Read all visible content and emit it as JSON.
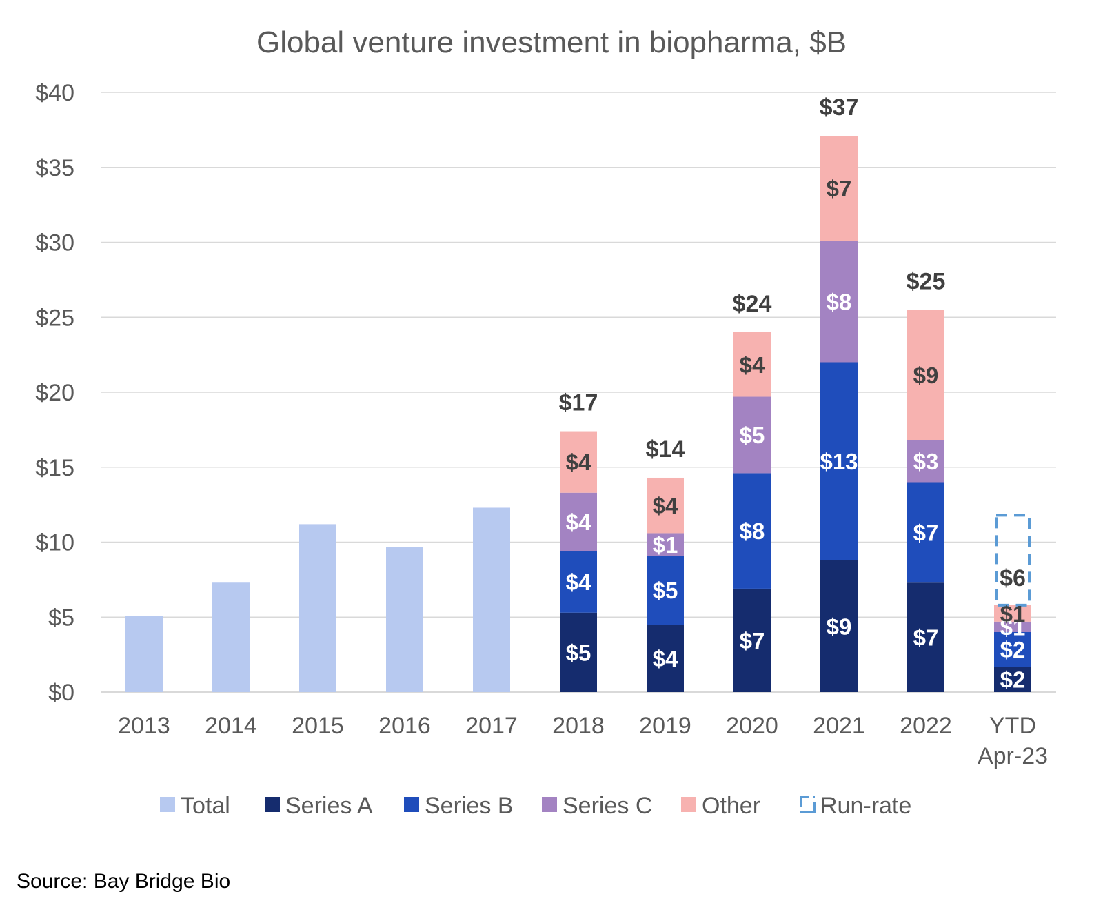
{
  "colors": {
    "total": "#B7C9F0",
    "series_a": "#152C6E",
    "series_b": "#1F4DBB",
    "series_c": "#A383C2",
    "other": "#F7B2B0",
    "run_rate": "#5B9BD5",
    "grid": "#D9D9D9",
    "axis_text": "#595959",
    "total_label": "#404040"
  },
  "source": "Source: Bay Bridge Bio",
  "chart_data": {
    "type": "bar",
    "stacked": true,
    "title": "Global venture investment in biopharma, $B",
    "xlabel": "",
    "ylabel": "",
    "ylim": [
      0,
      40
    ],
    "yticks": [
      0,
      5,
      10,
      15,
      20,
      25,
      30,
      35,
      40
    ],
    "ytick_labels": [
      "$0",
      "$5",
      "$10",
      "$15",
      "$20",
      "$25",
      "$30",
      "$35",
      "$40"
    ],
    "grid": true,
    "legend_position": "bottom",
    "categories": [
      [
        "2013"
      ],
      [
        "2014"
      ],
      [
        "2015"
      ],
      [
        "2016"
      ],
      [
        "2017"
      ],
      [
        "2018"
      ],
      [
        "2019"
      ],
      [
        "2020"
      ],
      [
        "2021"
      ],
      [
        "2022"
      ],
      [
        "YTD",
        "Apr-23"
      ]
    ],
    "series": [
      {
        "name": "Total",
        "key": "total",
        "values": [
          5.1,
          7.3,
          11.2,
          9.7,
          12.3,
          null,
          null,
          null,
          null,
          null,
          null
        ]
      },
      {
        "name": "Series A",
        "key": "series_a",
        "values": [
          null,
          null,
          null,
          null,
          null,
          5.3,
          4.5,
          6.9,
          8.8,
          7.3,
          1.7
        ],
        "labels": [
          "",
          "",
          "",
          "",
          "",
          "$5",
          "$4",
          "$7",
          "$9",
          "$7",
          "$2"
        ],
        "label_color": "#FFFFFF"
      },
      {
        "name": "Series B",
        "key": "series_b",
        "values": [
          null,
          null,
          null,
          null,
          null,
          4.1,
          4.6,
          7.7,
          13.2,
          6.7,
          2.3
        ],
        "labels": [
          "",
          "",
          "",
          "",
          "",
          "$4",
          "$5",
          "$8",
          "$13",
          "$7",
          "$2"
        ],
        "label_color": "#FFFFFF"
      },
      {
        "name": "Series C",
        "key": "series_c",
        "values": [
          null,
          null,
          null,
          null,
          null,
          3.9,
          1.5,
          5.1,
          8.1,
          2.8,
          0.7
        ],
        "labels": [
          "",
          "",
          "",
          "",
          "",
          "$4",
          "$1",
          "$5",
          "$8",
          "$3",
          "$1"
        ],
        "label_color": "#FFFFFF"
      },
      {
        "name": "Other",
        "key": "other",
        "values": [
          null,
          null,
          null,
          null,
          null,
          4.1,
          3.7,
          4.3,
          7.0,
          8.7,
          1.1
        ],
        "labels": [
          "",
          "",
          "",
          "",
          "",
          "$4",
          "$4",
          "$4",
          "$7",
          "$9",
          "$1"
        ],
        "label_color": "#404040"
      }
    ],
    "totals": {
      "indices": [
        5,
        6,
        7,
        8,
        9,
        10
      ],
      "labels": [
        "$17",
        "$14",
        "$24",
        "$37",
        "$25",
        "$6"
      ]
    },
    "run_rate": {
      "name": "Run-rate",
      "category_index": 10,
      "value": 11.8
    },
    "legend": [
      "Total",
      "Series A",
      "Series B",
      "Series C",
      "Other",
      "Run-rate"
    ]
  }
}
